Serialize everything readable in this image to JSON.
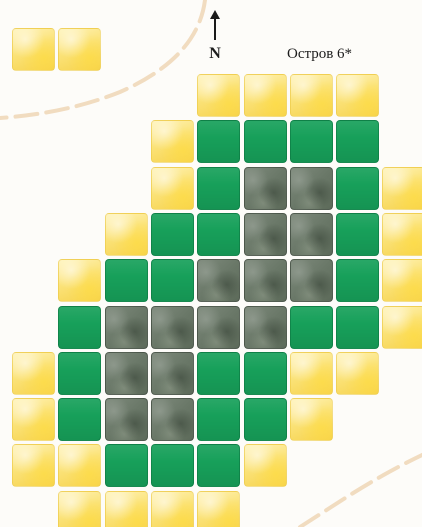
{
  "map": {
    "north_label": "N",
    "island_label": "Остров 6*",
    "tiles": [
      {
        "row": -1,
        "col": 0,
        "type": "sand"
      },
      {
        "row": -1,
        "col": 1,
        "type": "sand"
      },
      {
        "row": 0,
        "col": 4,
        "type": "sand"
      },
      {
        "row": 0,
        "col": 5,
        "type": "sand"
      },
      {
        "row": 0,
        "col": 6,
        "type": "sand"
      },
      {
        "row": 0,
        "col": 7,
        "type": "sand"
      },
      {
        "row": 1,
        "col": 3,
        "type": "sand"
      },
      {
        "row": 1,
        "col": 4,
        "type": "forest"
      },
      {
        "row": 1,
        "col": 5,
        "type": "forest"
      },
      {
        "row": 1,
        "col": 6,
        "type": "forest"
      },
      {
        "row": 1,
        "col": 7,
        "type": "forest"
      },
      {
        "row": 2,
        "col": 3,
        "type": "sand"
      },
      {
        "row": 2,
        "col": 4,
        "type": "forest"
      },
      {
        "row": 2,
        "col": 5,
        "type": "rock"
      },
      {
        "row": 2,
        "col": 6,
        "type": "rock"
      },
      {
        "row": 2,
        "col": 7,
        "type": "forest"
      },
      {
        "row": 2,
        "col": 8,
        "type": "sand"
      },
      {
        "row": 3,
        "col": 2,
        "type": "sand"
      },
      {
        "row": 3,
        "col": 3,
        "type": "forest"
      },
      {
        "row": 3,
        "col": 4,
        "type": "forest"
      },
      {
        "row": 3,
        "col": 5,
        "type": "rock"
      },
      {
        "row": 3,
        "col": 6,
        "type": "rock"
      },
      {
        "row": 3,
        "col": 7,
        "type": "forest"
      },
      {
        "row": 3,
        "col": 8,
        "type": "sand"
      },
      {
        "row": 4,
        "col": 1,
        "type": "sand"
      },
      {
        "row": 4,
        "col": 2,
        "type": "forest"
      },
      {
        "row": 4,
        "col": 3,
        "type": "forest"
      },
      {
        "row": 4,
        "col": 4,
        "type": "rock"
      },
      {
        "row": 4,
        "col": 5,
        "type": "rock"
      },
      {
        "row": 4,
        "col": 6,
        "type": "rock"
      },
      {
        "row": 4,
        "col": 7,
        "type": "forest"
      },
      {
        "row": 4,
        "col": 8,
        "type": "sand"
      },
      {
        "row": 5,
        "col": 1,
        "type": "forest"
      },
      {
        "row": 5,
        "col": 2,
        "type": "rock"
      },
      {
        "row": 5,
        "col": 3,
        "type": "rock"
      },
      {
        "row": 5,
        "col": 4,
        "type": "rock"
      },
      {
        "row": 5,
        "col": 5,
        "type": "rock"
      },
      {
        "row": 5,
        "col": 6,
        "type": "forest"
      },
      {
        "row": 5,
        "col": 7,
        "type": "forest"
      },
      {
        "row": 5,
        "col": 8,
        "type": "sand"
      },
      {
        "row": 6,
        "col": 0,
        "type": "sand"
      },
      {
        "row": 6,
        "col": 1,
        "type": "forest"
      },
      {
        "row": 6,
        "col": 2,
        "type": "rock"
      },
      {
        "row": 6,
        "col": 3,
        "type": "rock"
      },
      {
        "row": 6,
        "col": 4,
        "type": "forest"
      },
      {
        "row": 6,
        "col": 5,
        "type": "forest"
      },
      {
        "row": 6,
        "col": 6,
        "type": "sand"
      },
      {
        "row": 6,
        "col": 7,
        "type": "sand"
      },
      {
        "row": 7,
        "col": 0,
        "type": "sand"
      },
      {
        "row": 7,
        "col": 1,
        "type": "forest"
      },
      {
        "row": 7,
        "col": 2,
        "type": "rock"
      },
      {
        "row": 7,
        "col": 3,
        "type": "rock"
      },
      {
        "row": 7,
        "col": 4,
        "type": "forest"
      },
      {
        "row": 7,
        "col": 5,
        "type": "forest"
      },
      {
        "row": 7,
        "col": 6,
        "type": "sand"
      },
      {
        "row": 8,
        "col": 0,
        "type": "sand"
      },
      {
        "row": 8,
        "col": 1,
        "type": "sand"
      },
      {
        "row": 8,
        "col": 2,
        "type": "forest"
      },
      {
        "row": 8,
        "col": 3,
        "type": "forest"
      },
      {
        "row": 8,
        "col": 4,
        "type": "forest"
      },
      {
        "row": 8,
        "col": 5,
        "type": "sand"
      },
      {
        "row": 9,
        "col": 1,
        "type": "sand"
      },
      {
        "row": 9,
        "col": 2,
        "type": "sand"
      },
      {
        "row": 9,
        "col": 3,
        "type": "sand"
      },
      {
        "row": 9,
        "col": 4,
        "type": "sand"
      }
    ]
  }
}
